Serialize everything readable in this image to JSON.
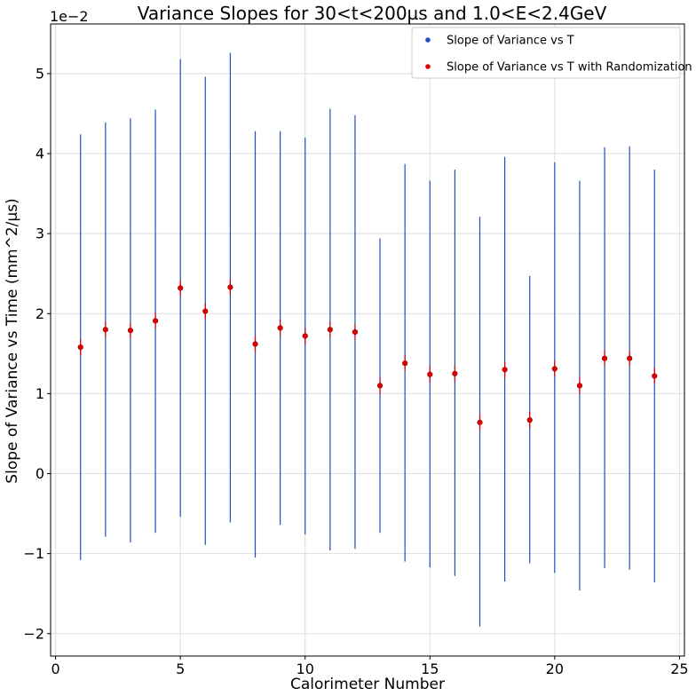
{
  "chart_data": {
    "type": "scatter",
    "title": "Variance Slopes for 30<t<200µs and 1.0<E<2.4GeV",
    "xlabel": "Calorimeter Number",
    "ylabel": "Slope of Variance vs Time (mm^2/µs)",
    "y_offset_label": "1e−2",
    "xlim": [
      -0.2,
      25.2
    ],
    "ylim": [
      -2.28,
      5.62
    ],
    "xticks": [
      0,
      5,
      10,
      15,
      20,
      25
    ],
    "yticks": [
      -2,
      -1,
      0,
      1,
      2,
      3,
      4,
      5
    ],
    "xtick_labels": [
      "0",
      "5",
      "10",
      "15",
      "20",
      "25"
    ],
    "ytick_labels": [
      "−2",
      "−1",
      "0",
      "1",
      "2",
      "3",
      "4",
      "5"
    ],
    "grid": true,
    "legend_position": "top-right",
    "x": [
      1,
      2,
      3,
      4,
      5,
      6,
      7,
      8,
      9,
      10,
      11,
      12,
      13,
      14,
      15,
      16,
      17,
      18,
      19,
      20,
      21,
      22,
      23,
      24
    ],
    "series": [
      {
        "name": "Slope of Variance vs T",
        "color": "#1f4fbf",
        "y": [
          1.58,
          1.8,
          1.79,
          1.91,
          2.32,
          2.03,
          2.33,
          1.62,
          1.82,
          1.72,
          1.8,
          1.77,
          1.1,
          1.38,
          1.24,
          1.25,
          0.64,
          1.3,
          0.67,
          1.31,
          1.1,
          1.44,
          1.44,
          1.22
        ],
        "yerr_low": [
          -1.08,
          -0.79,
          -0.86,
          -0.74,
          -0.54,
          -0.89,
          -0.61,
          -1.05,
          -0.64,
          -0.76,
          -0.96,
          -0.94,
          -0.74,
          -1.1,
          -1.17,
          -1.28,
          -1.91,
          -1.35,
          -1.12,
          -1.24,
          -1.46,
          -1.18,
          -1.2,
          -1.36
        ],
        "yerr_high": [
          4.24,
          4.39,
          4.44,
          4.55,
          5.18,
          4.96,
          5.26,
          4.28,
          4.28,
          4.2,
          4.56,
          4.48,
          2.94,
          3.87,
          3.66,
          3.8,
          3.21,
          3.96,
          2.47,
          3.89,
          3.66,
          4.08,
          4.09,
          3.8
        ]
      },
      {
        "name": "Slope of Variance vs T with Randomization",
        "color": "#e00000",
        "y": [
          1.58,
          1.8,
          1.79,
          1.91,
          2.32,
          2.03,
          2.33,
          1.62,
          1.82,
          1.72,
          1.8,
          1.77,
          1.1,
          1.38,
          1.24,
          1.25,
          0.64,
          1.3,
          0.67,
          1.31,
          1.1,
          1.44,
          1.44,
          1.22
        ],
        "yerr": 0.1
      }
    ]
  }
}
